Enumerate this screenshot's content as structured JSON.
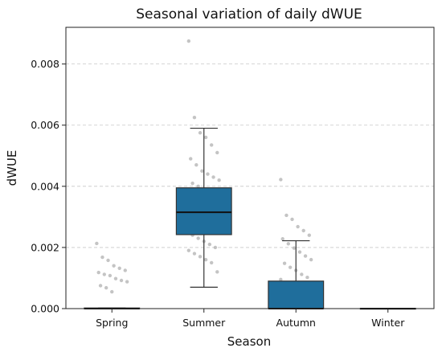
{
  "chart_data": {
    "type": "box",
    "title": "Seasonal variation of daily dWUE",
    "xlabel": "Season",
    "ylabel": "dWUE",
    "categories": [
      "Spring",
      "Summer",
      "Autumn",
      "Winter"
    ],
    "ylim": [
      0,
      0.0092
    ],
    "yticks": [
      0.0,
      0.002,
      0.004,
      0.006,
      0.008
    ],
    "ytick_labels": [
      "0.000",
      "0.002",
      "0.004",
      "0.006",
      "0.008"
    ],
    "grid": "y-dashed",
    "box_color": "#1f6e9c",
    "point_color": "#b0b0b0",
    "boxes": [
      {
        "name": "Spring",
        "whisker_low": 0.0,
        "q1": 0.0,
        "median": 0.0,
        "q3": 2e-05,
        "whisker_high": 2e-05
      },
      {
        "name": "Summer",
        "whisker_low": 0.0007,
        "q1": 0.00242,
        "median": 0.00315,
        "q3": 0.00395,
        "whisker_high": 0.0059
      },
      {
        "name": "Autumn",
        "whisker_low": 0.0,
        "q1": 0.0,
        "median": 0.0,
        "q3": 0.0009,
        "whisker_high": 0.00222
      },
      {
        "name": "Winter",
        "whisker_low": 0.0,
        "q1": 0.0,
        "median": 0.0,
        "q3": 1e-05,
        "whisker_high": 1e-05
      }
    ],
    "points": [
      {
        "category": "Spring",
        "values": [
          0.00213,
          0.00168,
          0.00158,
          0.0014,
          0.00132,
          0.00125,
          0.00118,
          0.00112,
          0.00108,
          0.00098,
          0.00092,
          0.00088,
          0.00075,
          0.00068,
          0.00055
        ]
      },
      {
        "category": "Summer",
        "values": [
          0.00875,
          0.00625,
          0.00575,
          0.0056,
          0.00535,
          0.0051,
          0.0049,
          0.0047,
          0.0045,
          0.0044,
          0.0043,
          0.0042,
          0.0041,
          0.004,
          0.0039,
          0.0038,
          0.0037,
          0.0036,
          0.0035,
          0.0034,
          0.0033,
          0.0032,
          0.0031,
          0.003,
          0.0029,
          0.0028,
          0.0027,
          0.0026,
          0.0025,
          0.0024,
          0.0023,
          0.0022,
          0.0021,
          0.002,
          0.0019,
          0.0018,
          0.0017,
          0.0016,
          0.0015,
          0.0012
        ]
      },
      {
        "category": "Autumn",
        "values": [
          0.00422,
          0.00305,
          0.00292,
          0.00268,
          0.00255,
          0.0024,
          0.00228,
          0.00212,
          0.00198,
          0.00185,
          0.00172,
          0.0016,
          0.00148,
          0.00135,
          0.00125,
          0.00112,
          0.00102,
          0.00095
        ]
      },
      {
        "category": "Winter",
        "values": []
      }
    ]
  }
}
